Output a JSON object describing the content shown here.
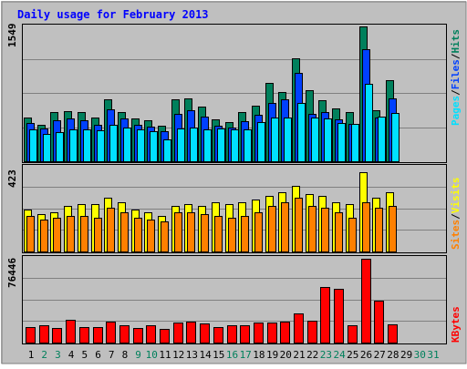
{
  "chart_data": [
    {
      "type": "bar",
      "title": "Daily usage for February 2013",
      "panel": "hits-files-pages",
      "ylabel_max": "1549",
      "legend": [
        "Pages",
        "Files",
        "Hits"
      ],
      "legend_separator": "/",
      "categories": [
        "1",
        "2",
        "3",
        "4",
        "5",
        "6",
        "7",
        "8",
        "9",
        "10",
        "11",
        "12",
        "13",
        "14",
        "15",
        "16",
        "17",
        "18",
        "19",
        "20",
        "21",
        "22",
        "23",
        "24",
        "25",
        "26",
        "27",
        "28",
        "29",
        "30",
        "31"
      ],
      "weekend_days": [
        "2",
        "3",
        "9",
        "10",
        "16",
        "17",
        "23",
        "24",
        "30",
        "31"
      ],
      "ylim": [
        0,
        1549
      ],
      "series": [
        {
          "name": "Hits",
          "color": "#00805c",
          "values": [
            500,
            420,
            560,
            580,
            560,
            500,
            710,
            570,
            490,
            470,
            410,
            710,
            720,
            630,
            480,
            450,
            570,
            640,
            900,
            800,
            1180,
            820,
            700,
            610,
            560,
            1549,
            590,
            930,
            0,
            0,
            0
          ]
        },
        {
          "name": "Files",
          "color": "#0040ff",
          "values": [
            440,
            380,
            470,
            490,
            470,
            420,
            600,
            490,
            420,
            400,
            350,
            540,
            590,
            510,
            410,
            390,
            460,
            530,
            670,
            710,
            1010,
            540,
            560,
            480,
            430,
            1290,
            500,
            720,
            0,
            0,
            0
          ]
        },
        {
          "name": "Pages",
          "color": "#00e0ff",
          "values": [
            370,
            310,
            330,
            370,
            370,
            360,
            420,
            390,
            370,
            350,
            250,
            380,
            390,
            370,
            380,
            370,
            370,
            450,
            500,
            500,
            670,
            500,
            490,
            440,
            430,
            890,
            510,
            550,
            0,
            0,
            0
          ]
        }
      ]
    },
    {
      "type": "bar",
      "panel": "visits-sites",
      "ylabel_max": "423",
      "legend": [
        "Sites",
        "Visits"
      ],
      "legend_separator": "/",
      "categories": [
        "1",
        "2",
        "3",
        "4",
        "5",
        "6",
        "7",
        "8",
        "9",
        "10",
        "11",
        "12",
        "13",
        "14",
        "15",
        "16",
        "17",
        "18",
        "19",
        "20",
        "21",
        "22",
        "23",
        "24",
        "25",
        "26",
        "27",
        "28",
        "29",
        "30",
        "31"
      ],
      "ylim": [
        0,
        423
      ],
      "series": [
        {
          "name": "Visits",
          "color": "#ffff00",
          "values": [
            210,
            190,
            200,
            230,
            240,
            240,
            270,
            250,
            210,
            200,
            180,
            230,
            240,
            230,
            250,
            240,
            250,
            260,
            280,
            300,
            330,
            290,
            280,
            250,
            240,
            400,
            270,
            300,
            0,
            0,
            0
          ]
        },
        {
          "name": "Sites",
          "color": "#ff8000",
          "values": [
            180,
            160,
            170,
            180,
            180,
            170,
            220,
            200,
            170,
            160,
            150,
            200,
            200,
            190,
            180,
            170,
            180,
            200,
            230,
            250,
            270,
            230,
            220,
            200,
            170,
            250,
            220,
            230,
            0,
            0,
            0
          ]
        }
      ]
    },
    {
      "type": "bar",
      "panel": "kbytes",
      "ylabel_max": "76446",
      "legend": [
        "KBytes"
      ],
      "categories": [
        "1",
        "2",
        "3",
        "4",
        "5",
        "6",
        "7",
        "8",
        "9",
        "10",
        "11",
        "12",
        "13",
        "14",
        "15",
        "16",
        "17",
        "18",
        "19",
        "20",
        "21",
        "22",
        "23",
        "24",
        "25",
        "26",
        "27",
        "28",
        "29",
        "30",
        "31"
      ],
      "ylim": [
        0,
        76446
      ],
      "series": [
        {
          "name": "KBytes",
          "color": "#ff0000",
          "values": [
            14500,
            16200,
            13600,
            20800,
            14500,
            14500,
            19000,
            16200,
            13600,
            15400,
            12700,
            18100,
            19000,
            17200,
            14500,
            15400,
            16200,
            18100,
            18100,
            19000,
            26300,
            19900,
            50900,
            49000,
            15400,
            76446,
            38100,
            16800,
            0,
            0,
            0
          ]
        }
      ]
    }
  ]
}
